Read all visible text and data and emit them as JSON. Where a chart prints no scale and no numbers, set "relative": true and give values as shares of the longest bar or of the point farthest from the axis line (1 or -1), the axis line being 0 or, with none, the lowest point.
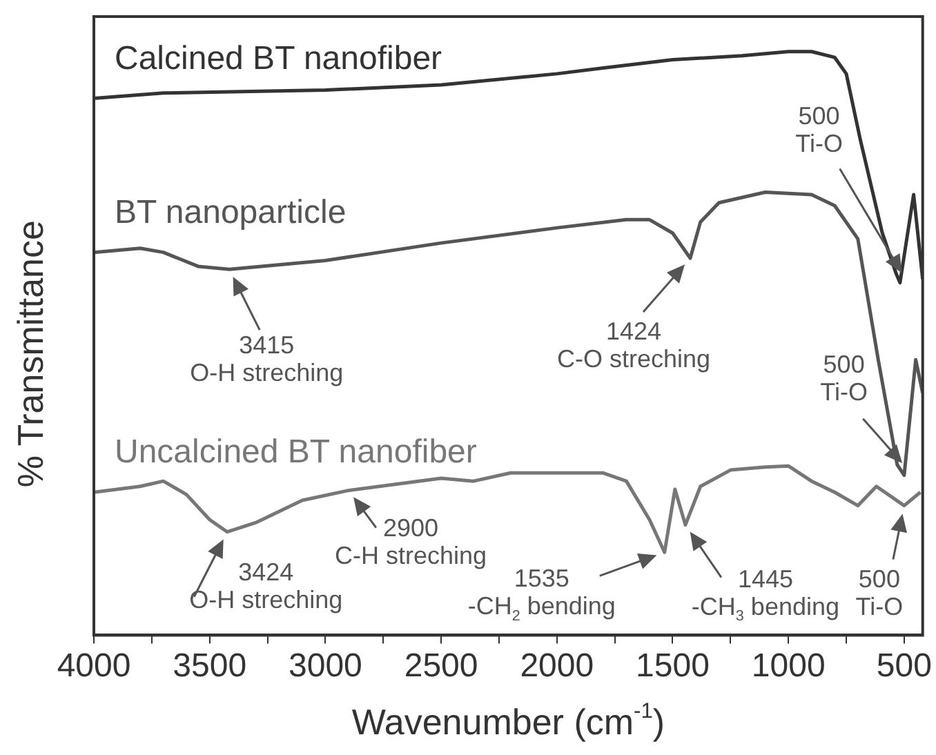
{
  "chart_data": {
    "type": "line",
    "relative": true,
    "xlabel": "Wavenumber (cm$^{-1}$)",
    "ylabel": "% Transmittance",
    "legend": false,
    "grid": false,
    "marker": "none",
    "line_style": "solid",
    "xlim": [
      4000,
      420
    ],
    "xticks": [
      4000,
      {
        "value": 3750,
        "label": null
      },
      3500,
      {
        "value": 3250,
        "label": null
      },
      3000,
      {
        "value": 2750,
        "label": null
      },
      2500,
      {
        "value": 2250,
        "label": null
      },
      2000,
      {
        "value": 1750,
        "label": null
      },
      1500,
      {
        "value": 1250,
        "label": null
      },
      1000,
      {
        "value": 750,
        "label": null
      },
      500
    ],
    "series": [
      {
        "name": "Calcined BT nanofiber",
        "color": "#333333",
        "x": [
          4000,
          3700,
          3000,
          2500,
          2000,
          1800,
          1500,
          1200,
          1000,
          900,
          800,
          750,
          690,
          595,
          535,
          518,
          459,
          420
        ],
        "values": [
          0.92,
          0.929,
          0.934,
          0.943,
          0.962,
          0.972,
          0.986,
          0.993,
          1,
          1,
          0.99,
          0.962,
          0.85,
          0.69,
          0.62,
          0.604,
          0.755,
          0.61
        ]
      },
      {
        "name": "BT nanoparticle",
        "color": "#555555",
        "x": [
          4000,
          3800,
          3700,
          3550,
          3415,
          3000,
          2500,
          2000,
          1700,
          1600,
          1500,
          1424,
          1380,
          1300,
          1100,
          900,
          800,
          700,
          612,
          530,
          500,
          450,
          420
        ],
        "values": [
          0.656,
          0.663,
          0.656,
          0.632,
          0.627,
          0.642,
          0.672,
          0.698,
          0.712,
          0.712,
          0.689,
          0.646,
          0.708,
          0.741,
          0.759,
          0.755,
          0.736,
          0.679,
          0.472,
          0.292,
          0.274,
          0.472,
          0.415
        ]
      },
      {
        "name": "Uncalcined BT nanofiber",
        "color": "#777777",
        "x": [
          4000,
          3800,
          3700,
          3600,
          3500,
          3424,
          3300,
          3100,
          2900,
          2500,
          2360,
          2200,
          1800,
          1700,
          1600,
          1535,
          1490,
          1445,
          1380,
          1250,
          1100,
          1000,
          900,
          800,
          700,
          620,
          500,
          430
        ],
        "values": [
          0.245,
          0.255,
          0.264,
          0.241,
          0.198,
          0.177,
          0.193,
          0.231,
          0.248,
          0.269,
          0.264,
          0.278,
          0.278,
          0.264,
          0.198,
          0.142,
          0.25,
          0.189,
          0.255,
          0.283,
          0.288,
          0.29,
          0.264,
          0.245,
          0.222,
          0.255,
          0.222,
          0.245
        ]
      }
    ],
    "annotations": [
      "500\nTi-O",
      {
        "text": "3415\nO-H streching",
        "x": 3415,
        "y": 0.627
      },
      {
        "text": "1424\nC-O streching",
        "x": 1424,
        "y": 0.646
      },
      "500\nTi-O",
      {
        "text": "3424\nO-H streching",
        "x": 3424,
        "y": 0.177
      },
      {
        "text": "2900\nC-H streching",
        "x": 2900,
        "y": 0.248
      },
      {
        "text": "1535\n-CH$_{2}$ bending",
        "x": 1535,
        "y": 0.142
      },
      {
        "text": "1445\n-CH$_{3}$ bending",
        "x": 1445,
        "y": 0.189
      },
      {
        "text": "500\nTi-O",
        "x": 500,
        "y": 0.222
      }
    ]
  }
}
